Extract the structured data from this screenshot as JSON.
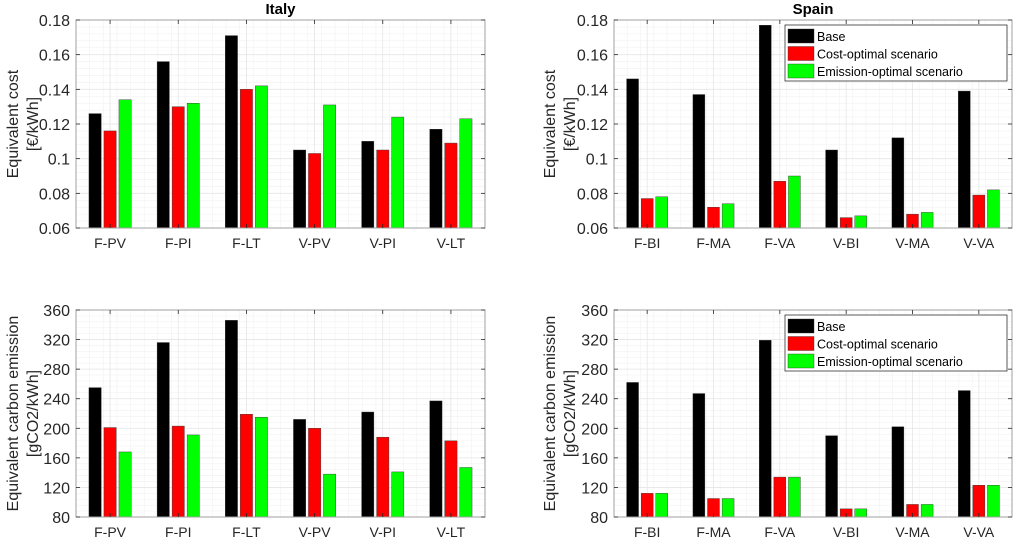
{
  "colors": {
    "base": "#000000",
    "cost": "#ff0000",
    "emission": "#00ff00",
    "grid": "#e6e6e6",
    "minor": "#f2f2f2",
    "axis": "#262626"
  },
  "legend": [
    "Base",
    "Cost-optimal scenario",
    "Emission-optimal scenario"
  ],
  "chart_data": [
    {
      "type": "bar",
      "title": "Italy",
      "ylabel": [
        "Equivalent cost",
        "[€/kWh]"
      ],
      "ylim": [
        0.06,
        0.18
      ],
      "yticks": [
        "0.06",
        "0.08",
        "0.1",
        "0.12",
        "0.14",
        "0.16",
        "0.18"
      ],
      "ytick_values": [
        0.06,
        0.08,
        0.1,
        0.12,
        0.14,
        0.16,
        0.18
      ],
      "categories": [
        "F-PV",
        "F-PI",
        "F-LT",
        "V-PV",
        "V-PI",
        "V-LT"
      ],
      "legend": false,
      "series": [
        {
          "name": "Base",
          "values": [
            0.126,
            0.156,
            0.171,
            0.105,
            0.11,
            0.117
          ]
        },
        {
          "name": "Cost-optimal scenario",
          "values": [
            0.116,
            0.13,
            0.14,
            0.103,
            0.105,
            0.109
          ]
        },
        {
          "name": "Emission-optimal scenario",
          "values": [
            0.134,
            0.132,
            0.142,
            0.131,
            0.124,
            0.123
          ]
        }
      ]
    },
    {
      "type": "bar",
      "title": "Spain",
      "ylabel": [
        "Equivalent cost",
        "[€/kWh]"
      ],
      "ylim": [
        0.06,
        0.18
      ],
      "yticks": [
        "0.06",
        "0.08",
        "0.1",
        "0.12",
        "0.14",
        "0.16",
        "0.18"
      ],
      "ytick_values": [
        0.06,
        0.08,
        0.1,
        0.12,
        0.14,
        0.16,
        0.18
      ],
      "categories": [
        "F-BI",
        "F-MA",
        "F-VA",
        "V-BI",
        "V-MA",
        "V-VA"
      ],
      "legend": "top-right",
      "series": [
        {
          "name": "Base",
          "values": [
            0.146,
            0.137,
            0.177,
            0.105,
            0.112,
            0.139
          ]
        },
        {
          "name": "Cost-optimal scenario",
          "values": [
            0.077,
            0.072,
            0.087,
            0.066,
            0.068,
            0.079
          ]
        },
        {
          "name": "Emission-optimal scenario",
          "values": [
            0.078,
            0.074,
            0.09,
            0.067,
            0.069,
            0.082
          ]
        }
      ]
    },
    {
      "type": "bar",
      "title": "",
      "ylabel": [
        "Equivalent carbon emission",
        "[gCO2/kWh]"
      ],
      "ylim": [
        80,
        360
      ],
      "yticks": [
        "80",
        "120",
        "160",
        "200",
        "240",
        "280",
        "320",
        "360"
      ],
      "ytick_values": [
        80,
        120,
        160,
        200,
        240,
        280,
        320,
        360
      ],
      "categories": [
        "F-PV",
        "F-PI",
        "F-LT",
        "V-PV",
        "V-PI",
        "V-LT"
      ],
      "legend": false,
      "series": [
        {
          "name": "Base",
          "values": [
            255,
            316,
            346,
            212,
            222,
            237
          ]
        },
        {
          "name": "Cost-optimal scenario",
          "values": [
            201,
            203,
            219,
            200,
            188,
            183
          ]
        },
        {
          "name": "Emission-optimal scenario",
          "values": [
            168,
            191,
            215,
            138,
            141,
            147
          ]
        }
      ]
    },
    {
      "type": "bar",
      "title": "",
      "ylabel": [
        "Equivalent carbon emission",
        "[gCO2/kWh]"
      ],
      "ylim": [
        80,
        360
      ],
      "yticks": [
        "80",
        "120",
        "160",
        "200",
        "240",
        "280",
        "320",
        "360"
      ],
      "ytick_values": [
        80,
        120,
        160,
        200,
        240,
        280,
        320,
        360
      ],
      "categories": [
        "F-BI",
        "F-MA",
        "F-VA",
        "V-BI",
        "V-MA",
        "V-VA"
      ],
      "legend": "top-right",
      "series": [
        {
          "name": "Base",
          "values": [
            262,
            247,
            319,
            190,
            202,
            251
          ]
        },
        {
          "name": "Cost-optimal scenario",
          "values": [
            112,
            105,
            134,
            91,
            97,
            123
          ]
        },
        {
          "name": "Emission-optimal scenario",
          "values": [
            112,
            105,
            134,
            91,
            97,
            123
          ]
        }
      ]
    }
  ]
}
